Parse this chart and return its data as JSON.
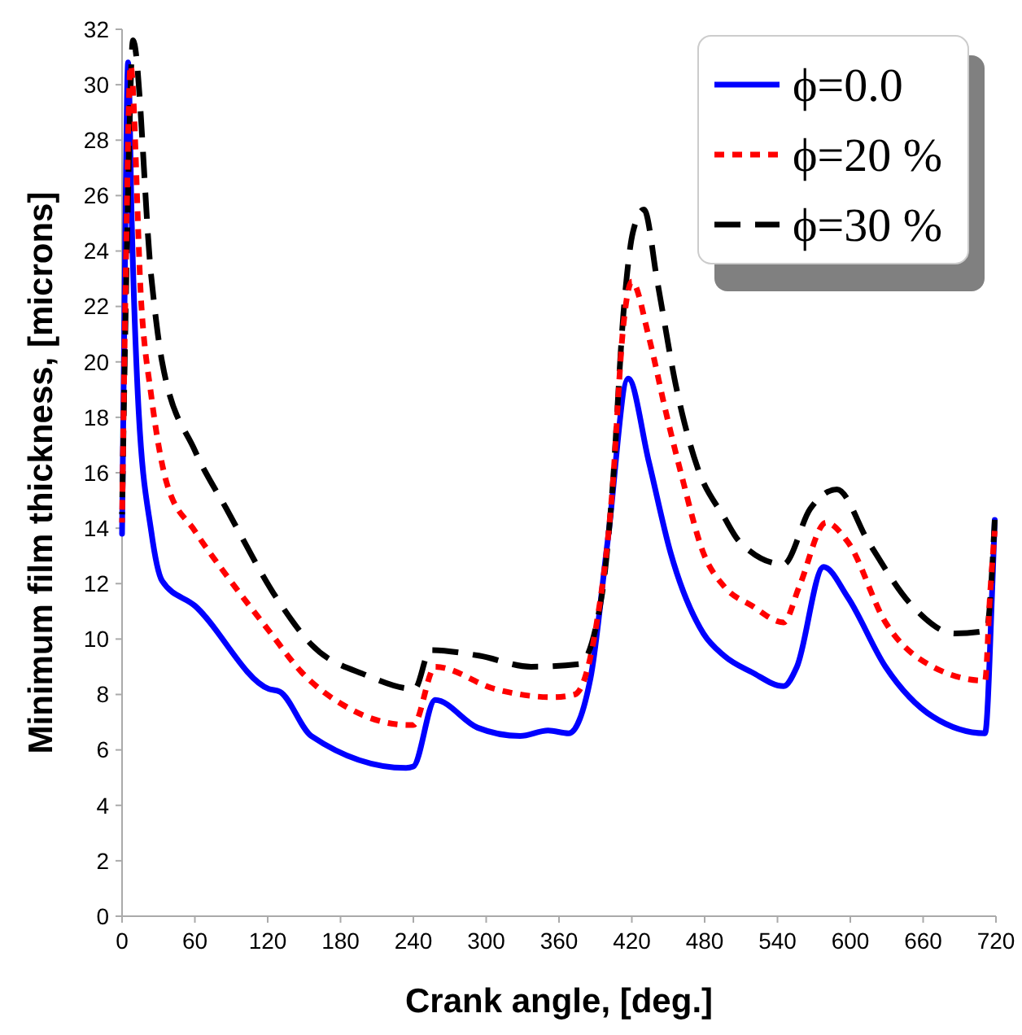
{
  "chart_data": {
    "type": "line",
    "xlabel": "Crank angle, [deg.]",
    "ylabel": "Minimum film thickness, [microns]",
    "xlim": [
      0,
      720
    ],
    "ylim": [
      0,
      32
    ],
    "xticks": [
      0,
      60,
      120,
      180,
      240,
      300,
      360,
      420,
      480,
      540,
      600,
      660,
      720
    ],
    "yticks": [
      0,
      2,
      4,
      6,
      8,
      10,
      12,
      14,
      16,
      18,
      20,
      22,
      24,
      26,
      28,
      30,
      32
    ],
    "grid": false,
    "legend": "top right",
    "marker": "none",
    "series": [
      {
        "name": "ϕ=0.0",
        "color": "#0000ff",
        "line_style": "solid",
        "x": [
          0,
          2,
          5,
          8,
          13,
          24,
          33,
          60,
          121,
          130,
          156,
          234,
          240,
          258,
          293,
          328,
          351,
          368,
          386,
          400,
          417,
          434,
          452,
          479,
          496,
          519,
          545,
          556,
          578,
          598,
          629,
          668,
          711,
          717,
          719
        ],
        "values": [
          13.8,
          22,
          30.8,
          25,
          18.8,
          13.9,
          12.1,
          11.2,
          8.2,
          8.1,
          6.5,
          5.35,
          5.4,
          7.8,
          6.8,
          6.5,
          6.7,
          6.6,
          8.6,
          13.5,
          19.4,
          16.4,
          13.1,
          10.2,
          9.4,
          8.8,
          8.3,
          9.0,
          12.6,
          11.5,
          9.0,
          7.2,
          6.6,
          11.9,
          14.3
        ]
      },
      {
        "name": "ϕ=20 %",
        "color": "#ff0000",
        "line_style": "dotted",
        "x": [
          0,
          3,
          7,
          16,
          24,
          37,
          60,
          86,
          121,
          148,
          183,
          236,
          240,
          258,
          307,
          355,
          373,
          390,
          404,
          413,
          420,
          434,
          448,
          461,
          479,
          496,
          519,
          545,
          558,
          580,
          598,
          629,
          668,
          711,
          715,
          719
        ],
        "values": [
          14.2,
          23,
          30.7,
          22,
          18.8,
          15.6,
          13.9,
          12.3,
          10.3,
          8.8,
          7.6,
          6.9,
          6.9,
          9.0,
          8.2,
          7.9,
          8.0,
          10.3,
          15.4,
          21.3,
          22.9,
          20.9,
          18.2,
          15.9,
          13.1,
          11.9,
          11.2,
          10.6,
          11.9,
          14.2,
          13.5,
          10.6,
          9.0,
          8.5,
          11.5,
          13.9
        ]
      },
      {
        "name": "ϕ=30 %",
        "color": "#000000",
        "line_style": "dashed",
        "x": [
          0,
          4,
          9,
          24,
          33,
          60,
          86,
          130,
          156,
          201,
          241,
          254,
          294,
          337,
          377,
          395,
          404,
          413,
          421,
          430,
          441,
          457,
          474,
          496,
          509,
          545,
          567,
          589,
          615,
          651,
          686,
          712,
          719
        ],
        "values": [
          14.5,
          24,
          31.6,
          23.1,
          20.0,
          16.8,
          14.7,
          11.3,
          9.8,
          8.7,
          8.2,
          9.6,
          9.4,
          9.0,
          9.1,
          11.5,
          15.4,
          21.7,
          24.7,
          25.5,
          22.9,
          19.0,
          16.2,
          14.4,
          13.5,
          12.7,
          14.7,
          15.4,
          13.5,
          11.2,
          10.2,
          10.3,
          14.3
        ]
      }
    ]
  }
}
